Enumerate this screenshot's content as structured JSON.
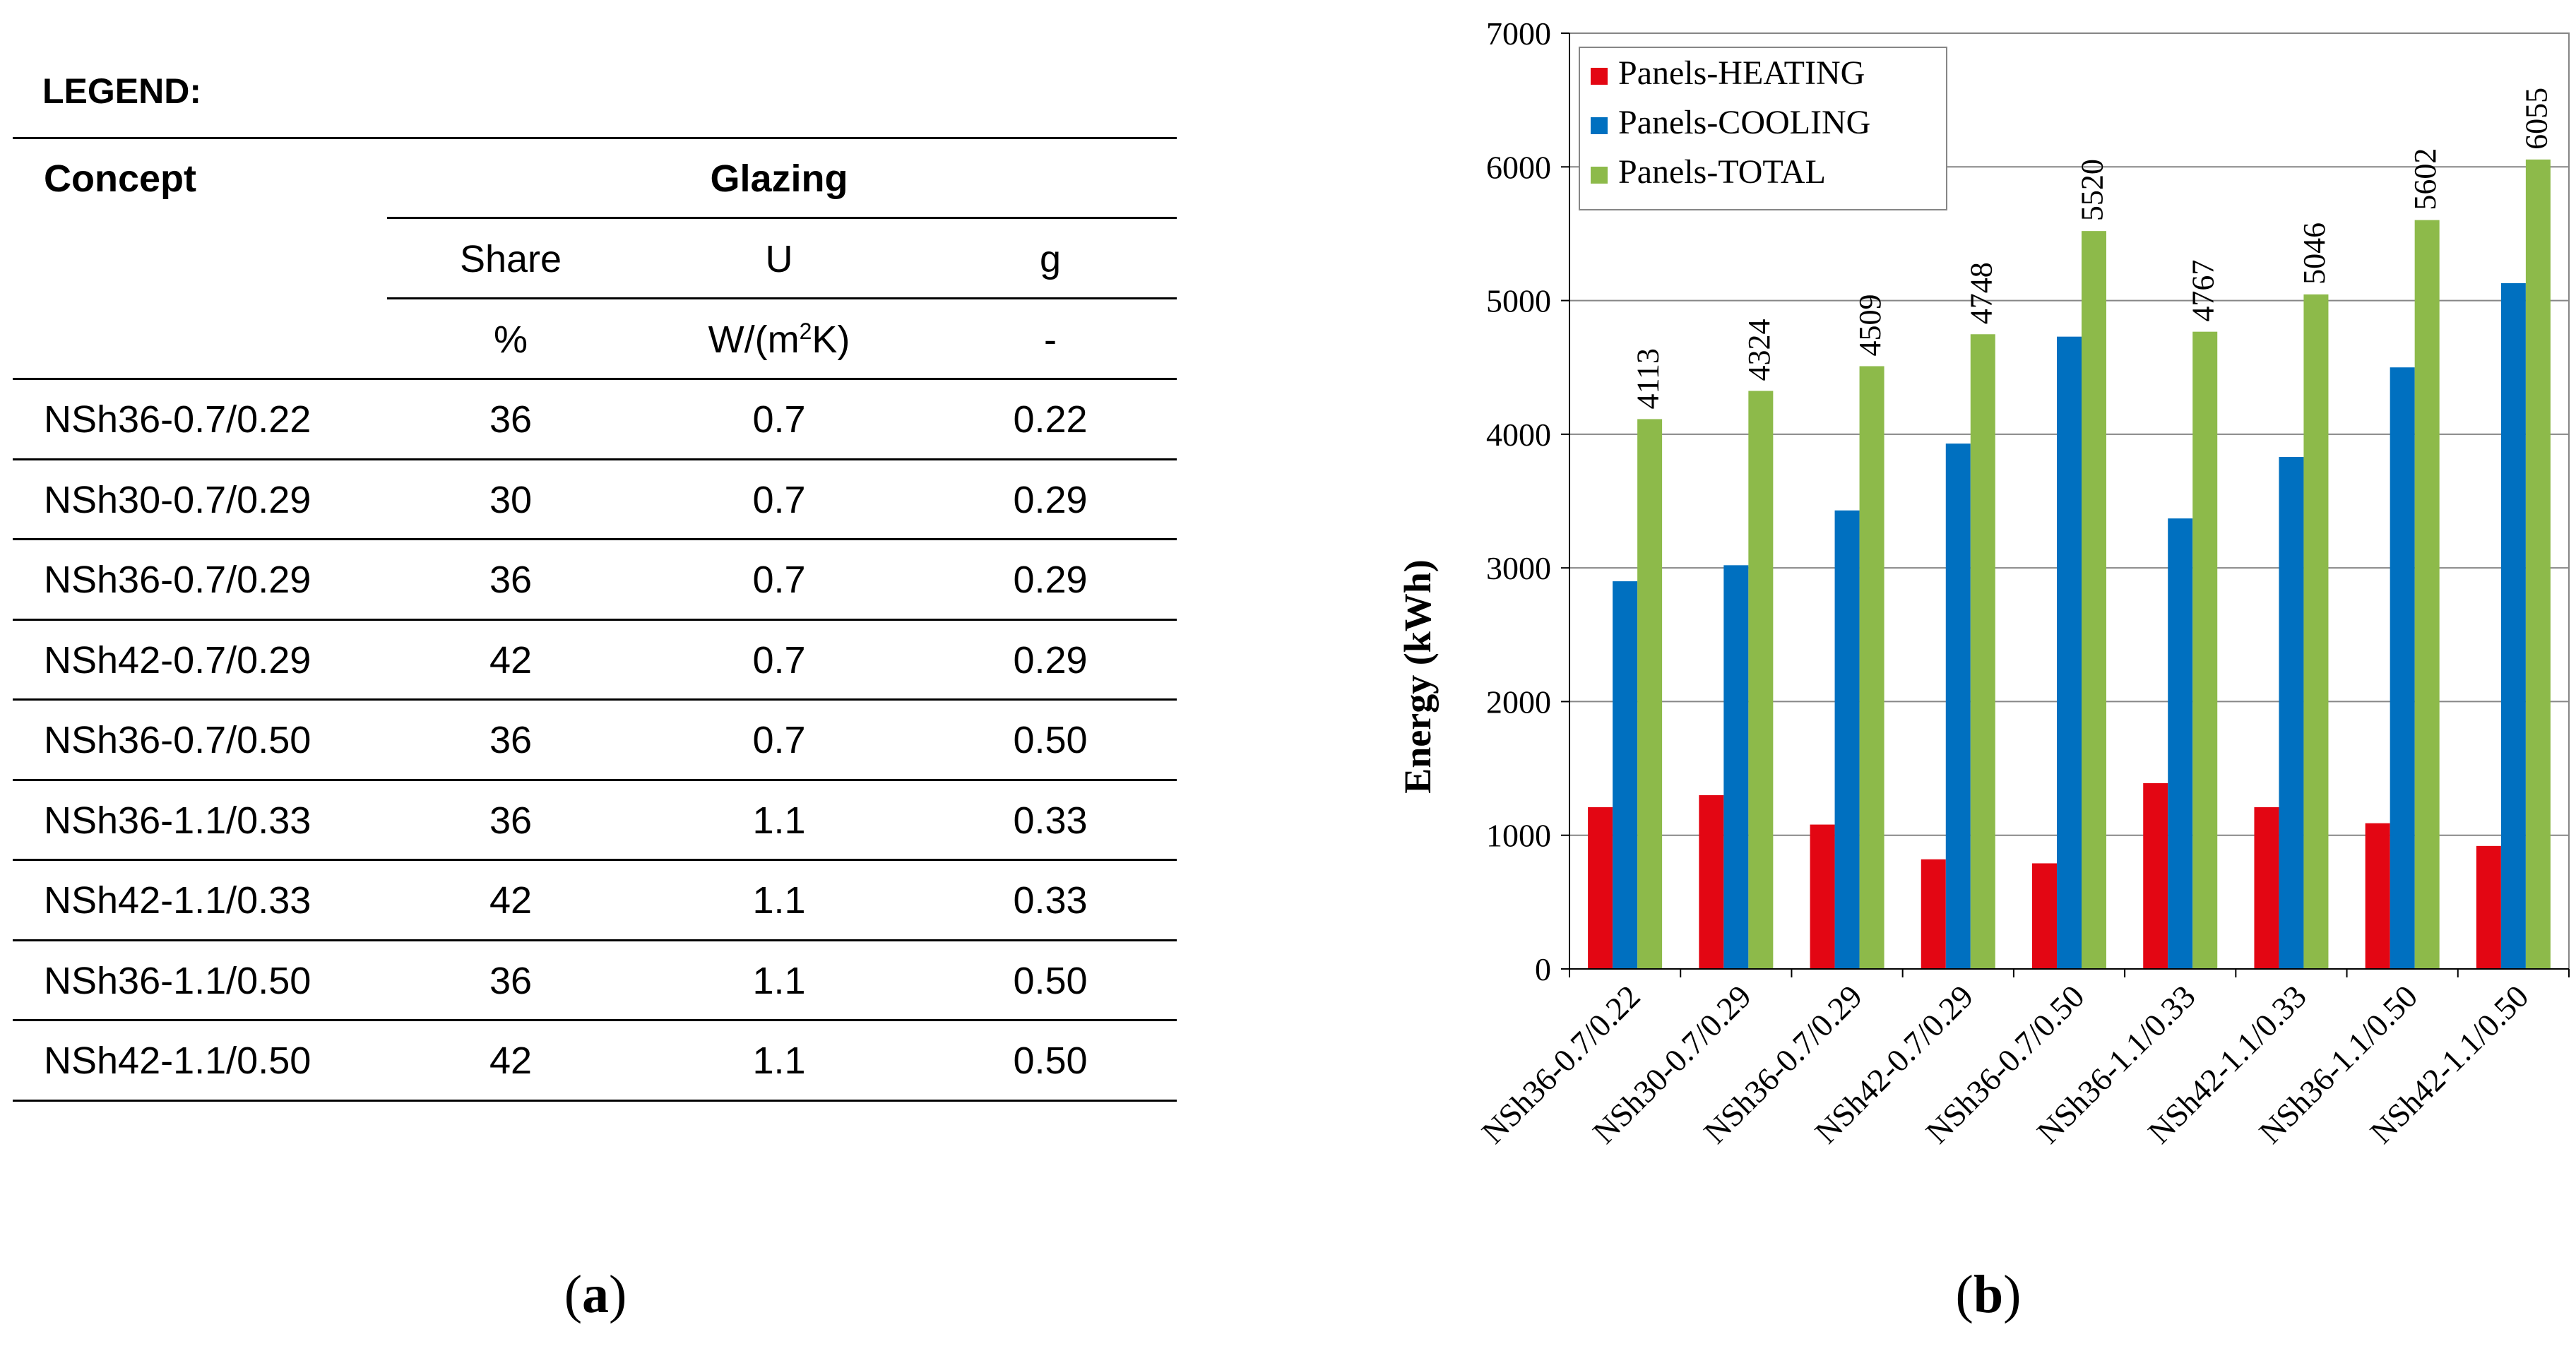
{
  "table": {
    "legend_label": "LEGEND:",
    "header": {
      "concept": "Concept",
      "glazing": "Glazing",
      "share": "Share",
      "u": "U",
      "g": "g",
      "share_unit": "%",
      "u_unit_prefix": "W/(m",
      "u_unit_sup": "2",
      "u_unit_suffix": "K)",
      "g_unit": "-"
    },
    "rows": [
      {
        "concept": "NSh36-0.7/0.22",
        "share": "36",
        "u": "0.7",
        "g": "0.22"
      },
      {
        "concept": "NSh30-0.7/0.29",
        "share": "30",
        "u": "0.7",
        "g": "0.29"
      },
      {
        "concept": "NSh36-0.7/0.29",
        "share": "36",
        "u": "0.7",
        "g": "0.29"
      },
      {
        "concept": "NSh42-0.7/0.29",
        "share": "42",
        "u": "0.7",
        "g": "0.29"
      },
      {
        "concept": "NSh36-0.7/0.50",
        "share": "36",
        "u": "0.7",
        "g": "0.50"
      },
      {
        "concept": "NSh36-1.1/0.33",
        "share": "36",
        "u": "1.1",
        "g": "0.33"
      },
      {
        "concept": "NSh42-1.1/0.33",
        "share": "42",
        "u": "1.1",
        "g": "0.33"
      },
      {
        "concept": "NSh36-1.1/0.50",
        "share": "36",
        "u": "1.1",
        "g": "0.50"
      },
      {
        "concept": "NSh42-1.1/0.50",
        "share": "42",
        "u": "1.1",
        "g": "0.50"
      }
    ]
  },
  "captions": {
    "a_open": "(",
    "a_letter": "a",
    "a_close": ")",
    "b_open": "(",
    "b_letter": "b",
    "b_close": ")"
  },
  "chart_data": {
    "type": "bar",
    "title": "",
    "xlabel": "",
    "ylabel": "Energy (kWh)",
    "ylim": [
      0,
      7000
    ],
    "yticks": [
      0,
      1000,
      2000,
      3000,
      4000,
      5000,
      6000,
      7000
    ],
    "grid": "horizontal",
    "legend_position": "top-left",
    "categories": [
      "NSh36-0.7/0.22",
      "NSh30-0.7/0.29",
      "NSh36-0.7/0.29",
      "NSh42-0.7/0.29",
      "NSh36-0.7/0.50",
      "NSh36-1.1/0.33",
      "NSh42-1.1/0.33",
      "NSh36-1.1/0.50",
      "NSh42-1.1/0.50"
    ],
    "series": [
      {
        "name": "Panels-HEATING",
        "color": "#e30613",
        "values": [
          1210,
          1300,
          1080,
          820,
          790,
          1390,
          1210,
          1090,
          920
        ]
      },
      {
        "name": "Panels-COOLING",
        "color": "#0070c0",
        "values": [
          2900,
          3020,
          3430,
          3930,
          4730,
          3370,
          3830,
          4500,
          5130
        ]
      },
      {
        "name": "Panels-TOTAL",
        "color": "#8dba4a",
        "values": [
          4113,
          4324,
          4509,
          4748,
          5520,
          4767,
          5046,
          5602,
          6055
        ],
        "data_labels": [
          "4113",
          "4324",
          "4509",
          "4748",
          "5520",
          "4767",
          "5046",
          "5602",
          "6055"
        ]
      }
    ]
  }
}
